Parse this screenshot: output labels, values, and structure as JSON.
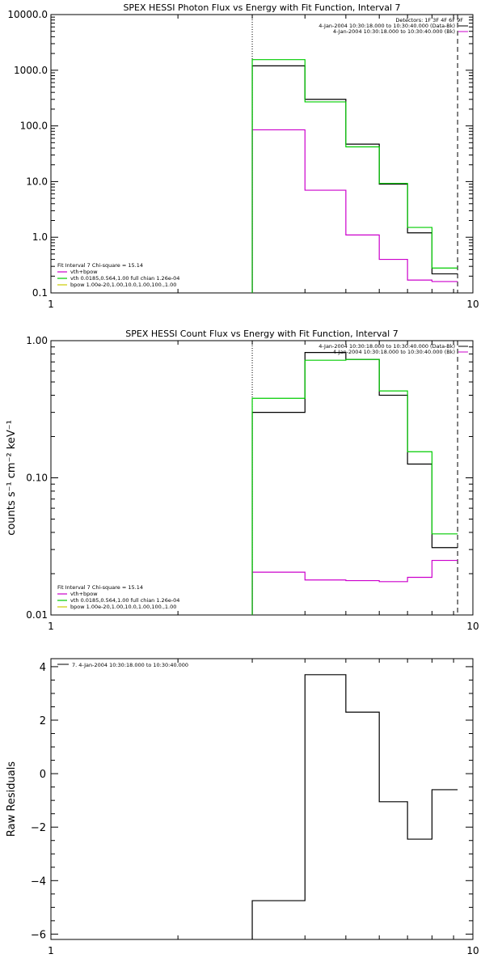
{
  "chart_data": [
    {
      "type": "line",
      "title": "SPEX HESSI Photon Flux vs Energy with Fit Function, Interval 7",
      "xlabel": "",
      "ylabel": "",
      "x_scale": "log",
      "y_scale": "log",
      "xlim": [
        1,
        10
      ],
      "ylim": [
        0.1,
        10000
      ],
      "x_ticks": [
        "1",
        "10"
      ],
      "y_ticks": [
        "0.1",
        "1.0",
        "10.0",
        "100.0",
        "1000.0",
        "10000.0"
      ],
      "colors": {
        "data": "#000000",
        "sum": "#cc00cc",
        "vth": "#00cc00",
        "bpow": "#cccc00"
      },
      "vlines": {
        "dotted": 3.0,
        "dashed": 9.2
      },
      "series": [
        {
          "color": "#000000",
          "bin_edges": [
            3,
            4,
            5,
            6,
            7,
            8,
            9.2
          ],
          "values": [
            1200,
            300,
            47,
            9,
            1.2,
            0.22
          ]
        },
        {
          "color": "#00cc00",
          "bin_edges": [
            3,
            4,
            5,
            6,
            7,
            8,
            9.2
          ],
          "values": [
            1550,
            270,
            42,
            9.3,
            1.5,
            0.28
          ]
        },
        {
          "color": "#cc00cc",
          "bin_edges": [
            3,
            4,
            5,
            6,
            7,
            8,
            9.2
          ],
          "values": [
            85,
            7,
            1.1,
            0.4,
            0.17,
            0.16
          ]
        }
      ],
      "legend_top": {
        "header": "Detectors: 1F 3F 4F 6F 9F",
        "entries": [
          {
            "text": "4-Jan-2004 10:30:18.000 to 10:30:40.000 (Data-Bk)",
            "color": "#000000"
          },
          {
            "text": "4-Jan-2004 10:30:18.000 to 10:30:40.000 (Bk)",
            "color": "#cc00cc"
          }
        ]
      },
      "legend_bottom": {
        "header": "Fit Interval  7    Chi-square = 15.14",
        "entries": [
          {
            "text": "vth+bpow",
            "color": "#cc00cc"
          },
          {
            "text": "vth 0.0185,0.564,1.00  full chian 1.26e-04",
            "color": "#00cc00"
          },
          {
            "text": "bpow 1.00e-20,1.00,10.0,1.00,100.,1.00",
            "color": "#cccc00"
          }
        ]
      }
    },
    {
      "type": "line",
      "title": "SPEX HESSI Count Flux vs Energy with Fit Function, Interval 7",
      "xlabel": "",
      "ylabel": "counts s⁻¹ cm⁻² keV⁻¹",
      "x_scale": "log",
      "y_scale": "log",
      "xlim": [
        1,
        10
      ],
      "ylim": [
        0.01,
        1.0
      ],
      "x_ticks": [
        "1",
        "10"
      ],
      "y_ticks": [
        "0.01",
        "0.10",
        "1.00"
      ],
      "vlines": {
        "dotted": 3.0,
        "dashed": 9.2
      },
      "series": [
        {
          "color": "#000000",
          "bin_edges": [
            3,
            4,
            5,
            6,
            7,
            8,
            9.2
          ],
          "values": [
            0.3,
            0.82,
            0.73,
            0.4,
            0.126,
            0.031
          ]
        },
        {
          "color": "#00cc00",
          "bin_edges": [
            3,
            4,
            5,
            6,
            7,
            8,
            9.2
          ],
          "values": [
            0.38,
            0.72,
            0.73,
            0.43,
            0.155,
            0.039
          ]
        },
        {
          "color": "#cc00cc",
          "bin_edges": [
            3,
            4,
            5,
            6,
            7,
            8,
            9.2
          ],
          "values": [
            0.0205,
            0.018,
            0.0178,
            0.0175,
            0.0188,
            0.025
          ]
        }
      ],
      "legend_top": {
        "entries": [
          {
            "text": "4-Jan-2004 10:30:18.000 to 10:30:40.000 (Data-Bk)",
            "color": "#000000"
          },
          {
            "text": "4-Jan-2004 10:30:18.000 to 10:30:40.000 (Bk)",
            "color": "#cc00cc"
          }
        ]
      },
      "legend_bottom": {
        "header": "Fit Interval  7    Chi-square = 15.14",
        "entries": [
          {
            "text": "vth+bpow",
            "color": "#cc00cc"
          },
          {
            "text": "vth 0.0185,0.564,1.00  full chian 1.26e-04",
            "color": "#00cc00"
          },
          {
            "text": "bpow 1.00e-20,1.00,10.0,1.00,100.,1.00",
            "color": "#cccc00"
          }
        ]
      }
    },
    {
      "type": "line",
      "title": "",
      "xlabel": "",
      "ylabel": "Raw Residuals",
      "x_scale": "log",
      "y_scale": "linear",
      "xlim": [
        1,
        10
      ],
      "ylim": [
        -6.2,
        4.3
      ],
      "x_ticks": [
        "1",
        "10"
      ],
      "y_ticks": [
        "−6",
        "−4",
        "−2",
        "0",
        "2",
        "4"
      ],
      "series": [
        {
          "color": "#000000",
          "bin_edges": [
            3,
            4,
            5,
            6,
            7,
            8,
            9.2
          ],
          "values": [
            -4.75,
            3.7,
            2.3,
            -1.05,
            -2.45,
            -0.6
          ]
        }
      ],
      "legend_top": {
        "entries": [
          {
            "text": "7.  4-Jan-2004 10:30:18.000 to 10:30:40.000",
            "color": "#000000"
          }
        ]
      }
    }
  ]
}
